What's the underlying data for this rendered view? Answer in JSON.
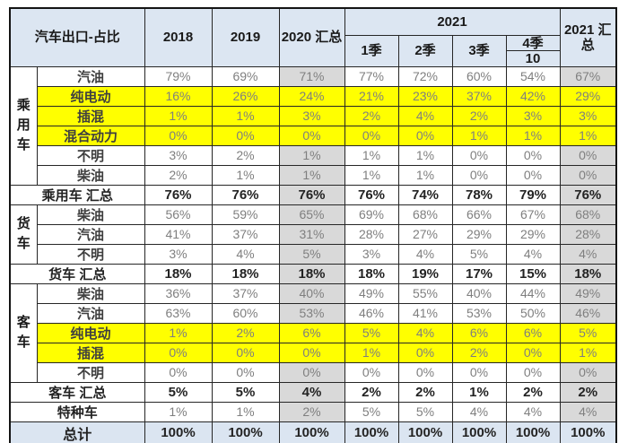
{
  "colors": {
    "header_bg": "#dce6f2",
    "total_row_bg": "#dbe5f1",
    "aggregate_column_bg": "#d9d9d9",
    "highlight_row_bg": "#ffff00",
    "border": "#262626",
    "value_text": "#7f7f7f",
    "bold_text": "#232323"
  },
  "chart_data": {
    "type": "table",
    "title": "汽车出口-占比",
    "header": {
      "title": "汽车出口-占比",
      "y2018": "2018",
      "y2019": "2019",
      "total_2020": "2020 汇总",
      "y2021": "2021",
      "q1": "1季",
      "q2": "2季",
      "q3": "3季",
      "q4": "4季",
      "q4_month": "10",
      "total_2021": "2021 汇总"
    },
    "columns": [
      "2018",
      "2019",
      "2020 汇总",
      "2021 1季",
      "2021 2季",
      "2021 3季",
      "2021 4季 (10)",
      "2021 汇总"
    ],
    "rows": [
      {
        "group": "乘用车",
        "group_span": 6,
        "label": "汽油",
        "kind": "data",
        "highlight": false,
        "values": [
          "79%",
          "69%",
          "71%",
          "77%",
          "72%",
          "60%",
          "54%",
          "67%"
        ]
      },
      {
        "label": "纯电动",
        "kind": "data",
        "highlight": true,
        "values": [
          "16%",
          "26%",
          "24%",
          "21%",
          "23%",
          "37%",
          "42%",
          "29%"
        ]
      },
      {
        "label": "插混",
        "kind": "data",
        "highlight": true,
        "values": [
          "1%",
          "1%",
          "3%",
          "2%",
          "4%",
          "2%",
          "3%",
          "3%"
        ]
      },
      {
        "label": "混合动力",
        "kind": "data",
        "highlight": true,
        "values": [
          "0%",
          "0%",
          "0%",
          "0%",
          "0%",
          "1%",
          "1%",
          "1%"
        ]
      },
      {
        "label": "不明",
        "kind": "data",
        "highlight": false,
        "values": [
          "3%",
          "2%",
          "1%",
          "1%",
          "1%",
          "0%",
          "0%",
          "0%"
        ]
      },
      {
        "label": "柴油",
        "kind": "data",
        "highlight": false,
        "values": [
          "2%",
          "1%",
          "1%",
          "1%",
          "1%",
          "0%",
          "0%",
          "0%"
        ]
      },
      {
        "label": "乘用车 汇总",
        "kind": "summary",
        "highlight": false,
        "values": [
          "76%",
          "76%",
          "76%",
          "76%",
          "74%",
          "78%",
          "79%",
          "76%"
        ]
      },
      {
        "group": "货车",
        "group_span": 3,
        "label": "柴油",
        "kind": "data",
        "highlight": false,
        "values": [
          "56%",
          "59%",
          "65%",
          "69%",
          "68%",
          "66%",
          "67%",
          "68%"
        ]
      },
      {
        "label": "汽油",
        "kind": "data",
        "highlight": false,
        "values": [
          "41%",
          "37%",
          "31%",
          "28%",
          "27%",
          "29%",
          "29%",
          "28%"
        ]
      },
      {
        "label": "不明",
        "kind": "data",
        "highlight": false,
        "values": [
          "3%",
          "4%",
          "5%",
          "3%",
          "4%",
          "5%",
          "4%",
          "4%"
        ]
      },
      {
        "label": "货车 汇总",
        "kind": "summary",
        "highlight": false,
        "values": [
          "18%",
          "18%",
          "18%",
          "18%",
          "19%",
          "17%",
          "15%",
          "18%"
        ]
      },
      {
        "group": "客车",
        "group_span": 5,
        "label": "柴油",
        "kind": "data",
        "highlight": false,
        "values": [
          "36%",
          "37%",
          "40%",
          "49%",
          "55%",
          "40%",
          "44%",
          "49%"
        ]
      },
      {
        "label": "汽油",
        "kind": "data",
        "highlight": false,
        "values": [
          "63%",
          "60%",
          "53%",
          "46%",
          "41%",
          "53%",
          "50%",
          "46%"
        ]
      },
      {
        "label": "纯电动",
        "kind": "data",
        "highlight": true,
        "values": [
          "1%",
          "2%",
          "6%",
          "5%",
          "4%",
          "6%",
          "6%",
          "5%"
        ]
      },
      {
        "label": "插混",
        "kind": "data",
        "highlight": true,
        "values": [
          "0%",
          "0%",
          "0%",
          "1%",
          "0%",
          "2%",
          "0%",
          "1%"
        ]
      },
      {
        "label": "不明",
        "kind": "data",
        "highlight": false,
        "values": [
          "0%",
          "0%",
          "0%",
          "0%",
          "0%",
          "0%",
          "0%",
          "0%"
        ]
      },
      {
        "label": "客车 汇总",
        "kind": "summary",
        "highlight": false,
        "values": [
          "5%",
          "5%",
          "4%",
          "2%",
          "2%",
          "1%",
          "2%",
          "2%"
        ]
      },
      {
        "label": "特种车",
        "kind": "special",
        "highlight": false,
        "values": [
          "1%",
          "1%",
          "2%",
          "5%",
          "5%",
          "4%",
          "4%",
          "4%"
        ]
      },
      {
        "label": "总计",
        "kind": "total",
        "highlight": false,
        "values": [
          "100%",
          "100%",
          "100%",
          "100%",
          "100%",
          "100%",
          "100%",
          "100%"
        ]
      }
    ]
  }
}
